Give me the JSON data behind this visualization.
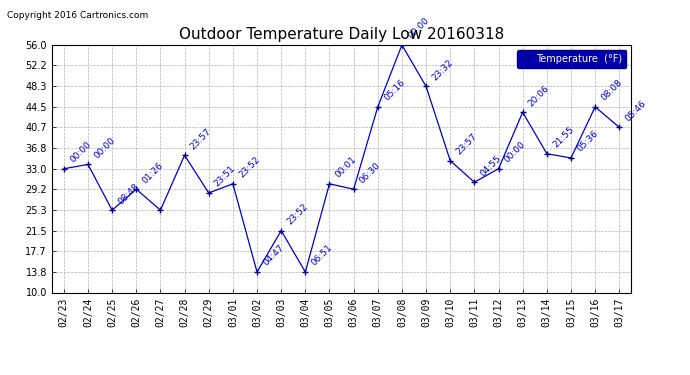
{
  "title": "Outdoor Temperature Daily Low 20160318",
  "copyright": "Copyright 2016 Cartronics.com",
  "legend_label": "Temperature  (°F)",
  "x_labels": [
    "02/23",
    "02/24",
    "02/25",
    "02/26",
    "02/27",
    "02/28",
    "02/29",
    "03/01",
    "03/02",
    "03/03",
    "03/04",
    "03/05",
    "03/06",
    "03/07",
    "03/08",
    "03/09",
    "03/10",
    "03/11",
    "03/12",
    "03/13",
    "03/14",
    "03/15",
    "03/16",
    "03/17"
  ],
  "y_ticks": [
    10.0,
    13.8,
    17.7,
    21.5,
    25.3,
    29.2,
    33.0,
    36.8,
    40.7,
    44.5,
    48.3,
    52.2,
    56.0
  ],
  "ylim": [
    10.0,
    56.0
  ],
  "data_points": [
    {
      "x": "02/23",
      "y": 33.0,
      "label": "00:00"
    },
    {
      "x": "02/24",
      "y": 33.8,
      "label": "00:00"
    },
    {
      "x": "02/25",
      "y": 25.3,
      "label": "08:48"
    },
    {
      "x": "02/26",
      "y": 29.2,
      "label": "01:26"
    },
    {
      "x": "02/27",
      "y": 25.3,
      "label": ""
    },
    {
      "x": "02/28",
      "y": 35.5,
      "label": "23:57"
    },
    {
      "x": "02/29",
      "y": 28.5,
      "label": "23:51"
    },
    {
      "x": "03/01",
      "y": 30.2,
      "label": "23:52"
    },
    {
      "x": "03/02",
      "y": 13.8,
      "label": "04:47"
    },
    {
      "x": "03/03",
      "y": 21.5,
      "label": "23:52"
    },
    {
      "x": "03/04",
      "y": 13.8,
      "label": "06:51"
    },
    {
      "x": "03/05",
      "y": 30.2,
      "label": "00:01"
    },
    {
      "x": "03/06",
      "y": 29.2,
      "label": "06:30"
    },
    {
      "x": "03/07",
      "y": 44.5,
      "label": "05:16"
    },
    {
      "x": "03/08",
      "y": 56.0,
      "label": "00:00"
    },
    {
      "x": "03/09",
      "y": 48.3,
      "label": "23:32"
    },
    {
      "x": "03/10",
      "y": 34.5,
      "label": "23:57"
    },
    {
      "x": "03/11",
      "y": 30.5,
      "label": "04:55"
    },
    {
      "x": "03/12",
      "y": 33.0,
      "label": "00:00"
    },
    {
      "x": "03/13",
      "y": 43.5,
      "label": "20:06"
    },
    {
      "x": "03/14",
      "y": 35.8,
      "label": "21:55"
    },
    {
      "x": "03/15",
      "y": 35.0,
      "label": "05:36"
    },
    {
      "x": "03/16",
      "y": 44.5,
      "label": "08:08"
    },
    {
      "x": "03/17",
      "y": 40.7,
      "label": "05:46"
    }
  ],
  "line_color": "#0000cc",
  "marker_color": "#000080",
  "bg_color": "#ffffff",
  "plot_bg_color": "#ffffff",
  "grid_color": "#b0b0b0",
  "title_fontsize": 11,
  "tick_fontsize": 7,
  "annotation_fontsize": 6.5,
  "copyright_fontsize": 6.5
}
